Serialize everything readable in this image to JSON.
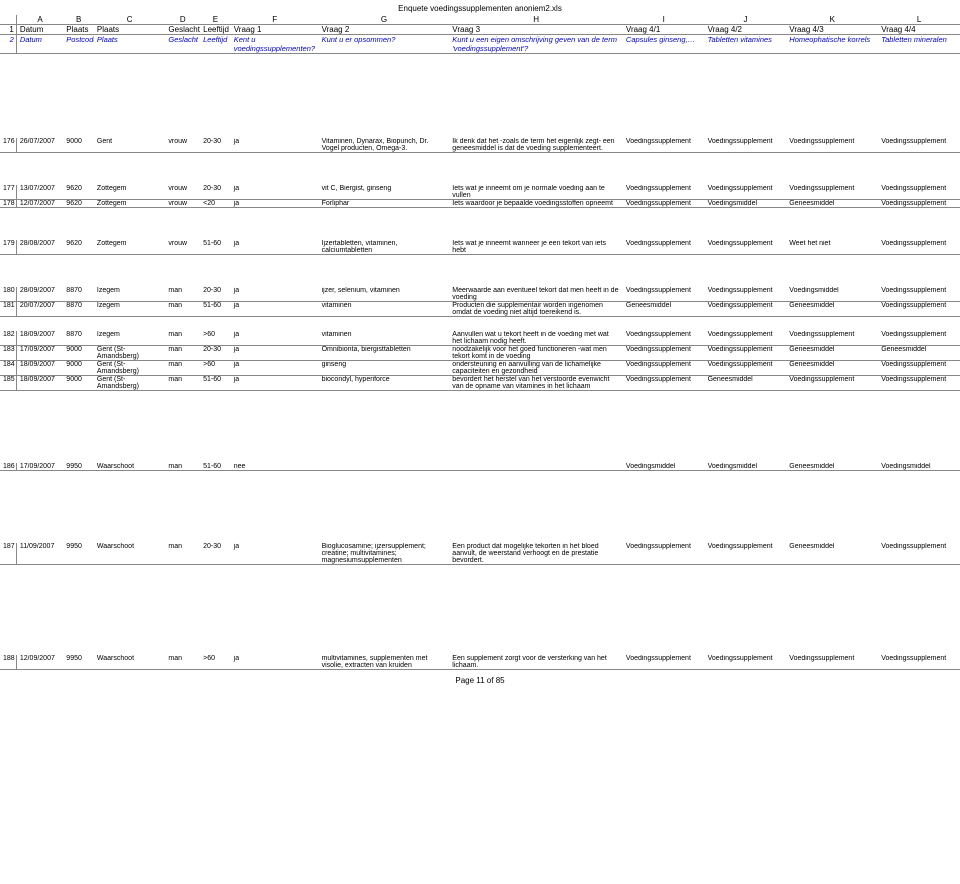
{
  "title": "Enquete voedingssupplementen anoniem2.xls",
  "footer": "Page 11 of 85",
  "letters": [
    "",
    "A",
    "B",
    "C",
    "D",
    "E",
    "F",
    "G",
    "H",
    "I",
    "J",
    "K",
    "L"
  ],
  "hdr1": [
    "1",
    "Datum",
    "Plaats",
    "Plaats",
    "Geslacht",
    "Leeftijd",
    "Vraag 1",
    "Vraag 2",
    "Vraag 3",
    "Vraag 4/1",
    "Vraag 4/2",
    "Vraag 4/3",
    "Vraag 4/4"
  ],
  "hdr2": [
    "2",
    "Datum",
    "Postcode",
    "Plaats",
    "Geslacht",
    "Leeftijd",
    "Kent u voedingssupplementen?",
    "Kunt u er opsommen?",
    "Kunt u een eigen omschrijving geven van de term 'voedingssupplement'?",
    "Capsules ginseng,…",
    "Tabletten vitamines",
    "Homeophatische korrels",
    "Tabletten mineralen"
  ],
  "rows": [
    {
      "n": "176",
      "d": "26/07/2007",
      "pc": "9000",
      "pl": "Gent",
      "g": "vrouw",
      "l": "20-30",
      "v1": "ja",
      "v2": "Vitaminen, Dynarax, Biopunch, Dr. Vogel producten, Omega-3.",
      "v3": "Ik denk dat het -zoals de term het eigenlijk zegt- een geneesmiddel is dat de voeding supplementeert.",
      "a": "Voedingssupplement",
      "b": "Voedingssupplement",
      "c": "Voedingssupplement",
      "e": "Voedingssupplement"
    },
    {
      "n": "177",
      "d": "13/07/2007",
      "pc": "9620",
      "pl": "Zottegem",
      "g": "vrouw",
      "l": "20-30",
      "v1": "ja",
      "v2": "vit C, Biergist, ginseng",
      "v3": "Iets wat je inneemt om je normale voeding aan te vullen",
      "a": "Voedingssupplement",
      "b": "Voedingssupplement",
      "c": "Voedingssupplement",
      "e": "Voedingssupplement"
    },
    {
      "n": "178",
      "d": "12/07/2007",
      "pc": "9620",
      "pl": "Zottegem",
      "g": "vrouw",
      "l": "<20",
      "v1": "ja",
      "v2": "Forliphar",
      "v3": "Iets waardoor je bepaalde voedingsstoffen opneemt",
      "a": "Voedingssupplement",
      "b": "Voedingsmiddel",
      "c": "Geneesmiddel",
      "e": "Voedingssupplement"
    },
    {
      "n": "179",
      "d": "28/08/2007",
      "pc": "9620",
      "pl": "Zottegem",
      "g": "vrouw",
      "l": "51-60",
      "v1": "ja",
      "v2": "Ijzertabletten, vitaminen, calciumtabletten",
      "v3": "Iets wat je inneemt wanneer je een tekort van iets hebt",
      "a": "Voedingssupplement",
      "b": "Voedingssupplement",
      "c": "Weet het niet",
      "e": "Voedingssupplement"
    },
    {
      "n": "180",
      "d": "28/09/2007",
      "pc": "8870",
      "pl": "Izegem",
      "g": "man",
      "l": "20-30",
      "v1": "ja",
      "v2": "ijzer, selenium, vitaminen",
      "v3": "Meerwaarde aan eventueel tekort dat men heeft in de voeding",
      "a": "Voedingssupplement",
      "b": "Voedingssupplement",
      "c": "Voedingsmiddel",
      "e": "Voedingssupplement"
    },
    {
      "n": "181",
      "d": "20/07/2007",
      "pc": "8870",
      "pl": "Izegem",
      "g": "man",
      "l": "51-60",
      "v1": "ja",
      "v2": "vitaminen",
      "v3": "Producten die supplementair worden ingenomen omdat de voeding niet altijd toereikend is.",
      "a": "Geneesmiddel",
      "b": "Voedingssupplement",
      "c": "Geneesmiddel",
      "e": "Voedingssupplement"
    },
    {
      "n": "182",
      "d": "18/09/2007",
      "pc": "8870",
      "pl": "Izegem",
      "g": "man",
      "l": ">60",
      "v1": "ja",
      "v2": "vitaminen",
      "v3": "Aanvullen wat u tekort heeft in de voeding met wat het lichaam nodig heeft.",
      "a": "Voedingssupplement",
      "b": "Voedingssupplement",
      "c": "Voedingssupplement",
      "e": "Voedingssupplement"
    },
    {
      "n": "183",
      "d": "17/09/2007",
      "pc": "9000",
      "pl": "Gent (St-Amandsberg)",
      "g": "man",
      "l": "20-30",
      "v1": "ja",
      "v2": "Omnibionta, biergisttabletten",
      "v3": "noodzakelijk voor het goed functioneren -wat men tekort komt in de voeding",
      "a": "Voedingssupplement",
      "b": "Voedingssupplement",
      "c": "Geneesmiddel",
      "e": "Geneesmiddel"
    },
    {
      "n": "184",
      "d": "18/09/2007",
      "pc": "9000",
      "pl": "Gent (St-Amandsberg)",
      "g": "man",
      "l": ">60",
      "v1": "ja",
      "v2": "ginseng",
      "v3": "ondersteuning en aanvulling van de lichamelijke capaciteiten en gezondheid",
      "a": "Voedingssupplement",
      "b": "Voedingssupplement",
      "c": "Geneesmiddel",
      "e": "Voedingssupplement"
    },
    {
      "n": "185",
      "d": "18/09/2007",
      "pc": "9000",
      "pl": "Gent (St-Amandsberg)",
      "g": "man",
      "l": "51-60",
      "v1": "ja",
      "v2": "biocondyl, hyperiforce",
      "v3": "bevordert het herstel van het verstoorde evenwicht van de opname van vitamines in het lichaam",
      "a": "Voedingssupplement",
      "b": "Geneesmiddel",
      "c": "Voedingssupplement",
      "e": "Voedingssupplement"
    },
    {
      "n": "186",
      "d": "17/09/2007",
      "pc": "9950",
      "pl": "Waarschoot",
      "g": "man",
      "l": "51-60",
      "v1": "nee",
      "v2": "",
      "v3": "",
      "a": "Voedingsmiddel",
      "b": "Voedingsmiddel",
      "c": "Geneesmiddel",
      "e": "Voedingsmiddel"
    },
    {
      "n": "187",
      "d": "11/09/2007",
      "pc": "9950",
      "pl": "Waarschoot",
      "g": "man",
      "l": "20-30",
      "v1": "ja",
      "v2": "Bioglucosamine; ijzersupplement; creatine; multivitamines; magnesiumsupplementen",
      "v3": "Een product dat mogelijke tekorten in het bloed aanvult, de weerstand verhoogt en de prestatie bevordert.",
      "a": "Voedingssupplement",
      "b": "Voedingssupplement",
      "c": "Geneesmiddel",
      "e": "Voedingssupplement"
    },
    {
      "n": "188",
      "d": "12/09/2007",
      "pc": "9950",
      "pl": "Waarschoot",
      "g": "man",
      "l": ">60",
      "v1": "ja",
      "v2": "multivitamines, supplementen met visolie, extracten van kruiden",
      "v3": "Een supplement zorgt voor de versterking van het lichaam.",
      "a": "Voedingssupplement",
      "b": "Voedingssupplement",
      "c": "Voedingssupplement",
      "e": "Voedingssupplement"
    }
  ],
  "spacers": {
    "after_hdr2": "gap-big",
    "after_176": "gap-med",
    "after_178": "gap-med",
    "after_179": "gap-med",
    "after_185": "gap-large",
    "after_186": "gap-large",
    "after_187": "gap-xl"
  }
}
